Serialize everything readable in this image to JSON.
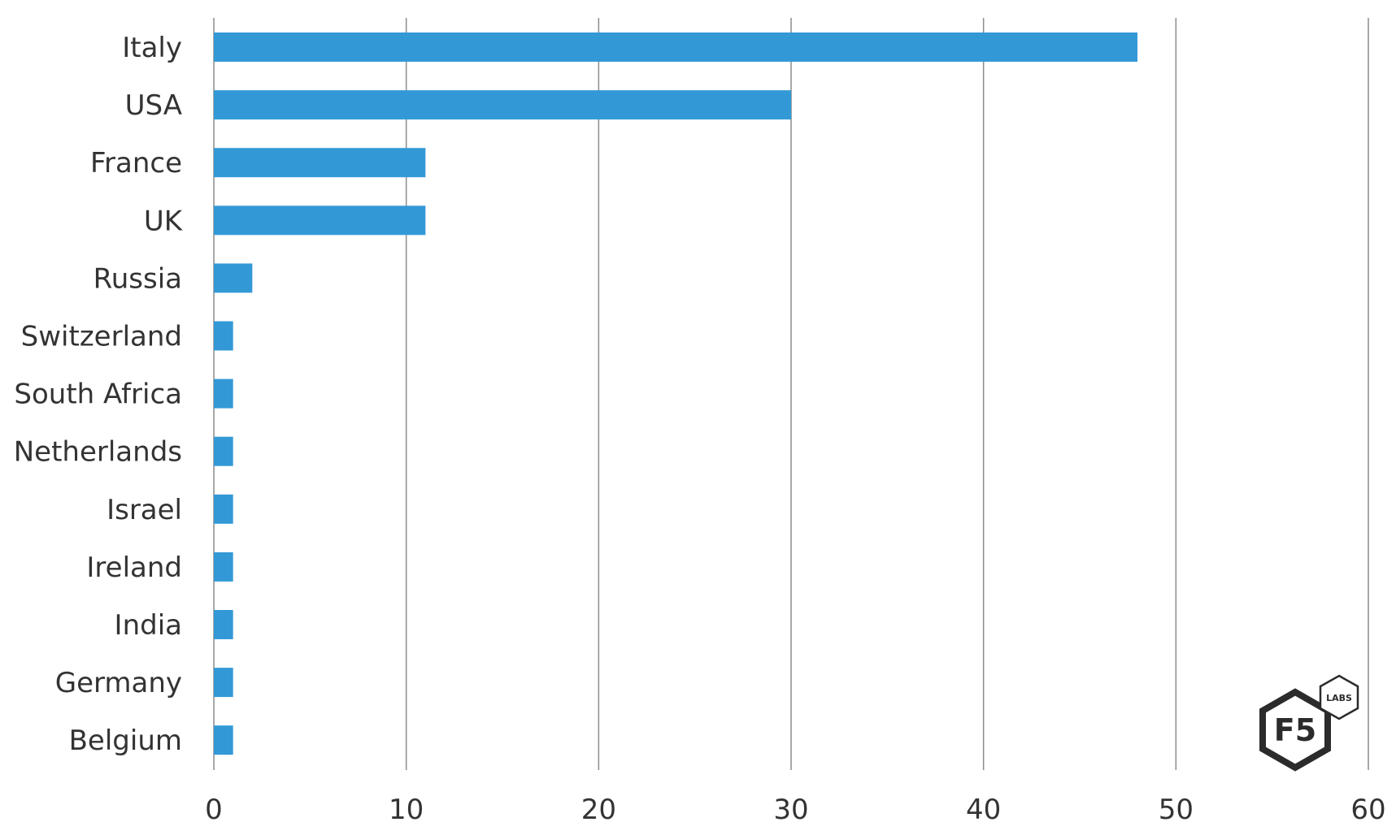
{
  "chart_data": {
    "type": "bar",
    "orientation": "horizontal",
    "categories": [
      "Italy",
      "USA",
      "France",
      "UK",
      "Russia",
      "Switzerland",
      "South Africa",
      "Netherlands",
      "Israel",
      "Ireland",
      "India",
      "Germany",
      "Belgium"
    ],
    "values": [
      48,
      30,
      11,
      11,
      2,
      1,
      1,
      1,
      1,
      1,
      1,
      1,
      1
    ],
    "xlim": [
      0,
      60
    ],
    "xticks": [
      0,
      10,
      20,
      30,
      40,
      50,
      60
    ],
    "grid": "vertical",
    "title": "",
    "xlabel": "",
    "ylabel": "",
    "colors": {
      "bar": "#3399d6",
      "grid": "#8c8c8c",
      "text": "#333333"
    }
  },
  "logo": {
    "main_text": "F5",
    "badge_text": "LABS"
  }
}
